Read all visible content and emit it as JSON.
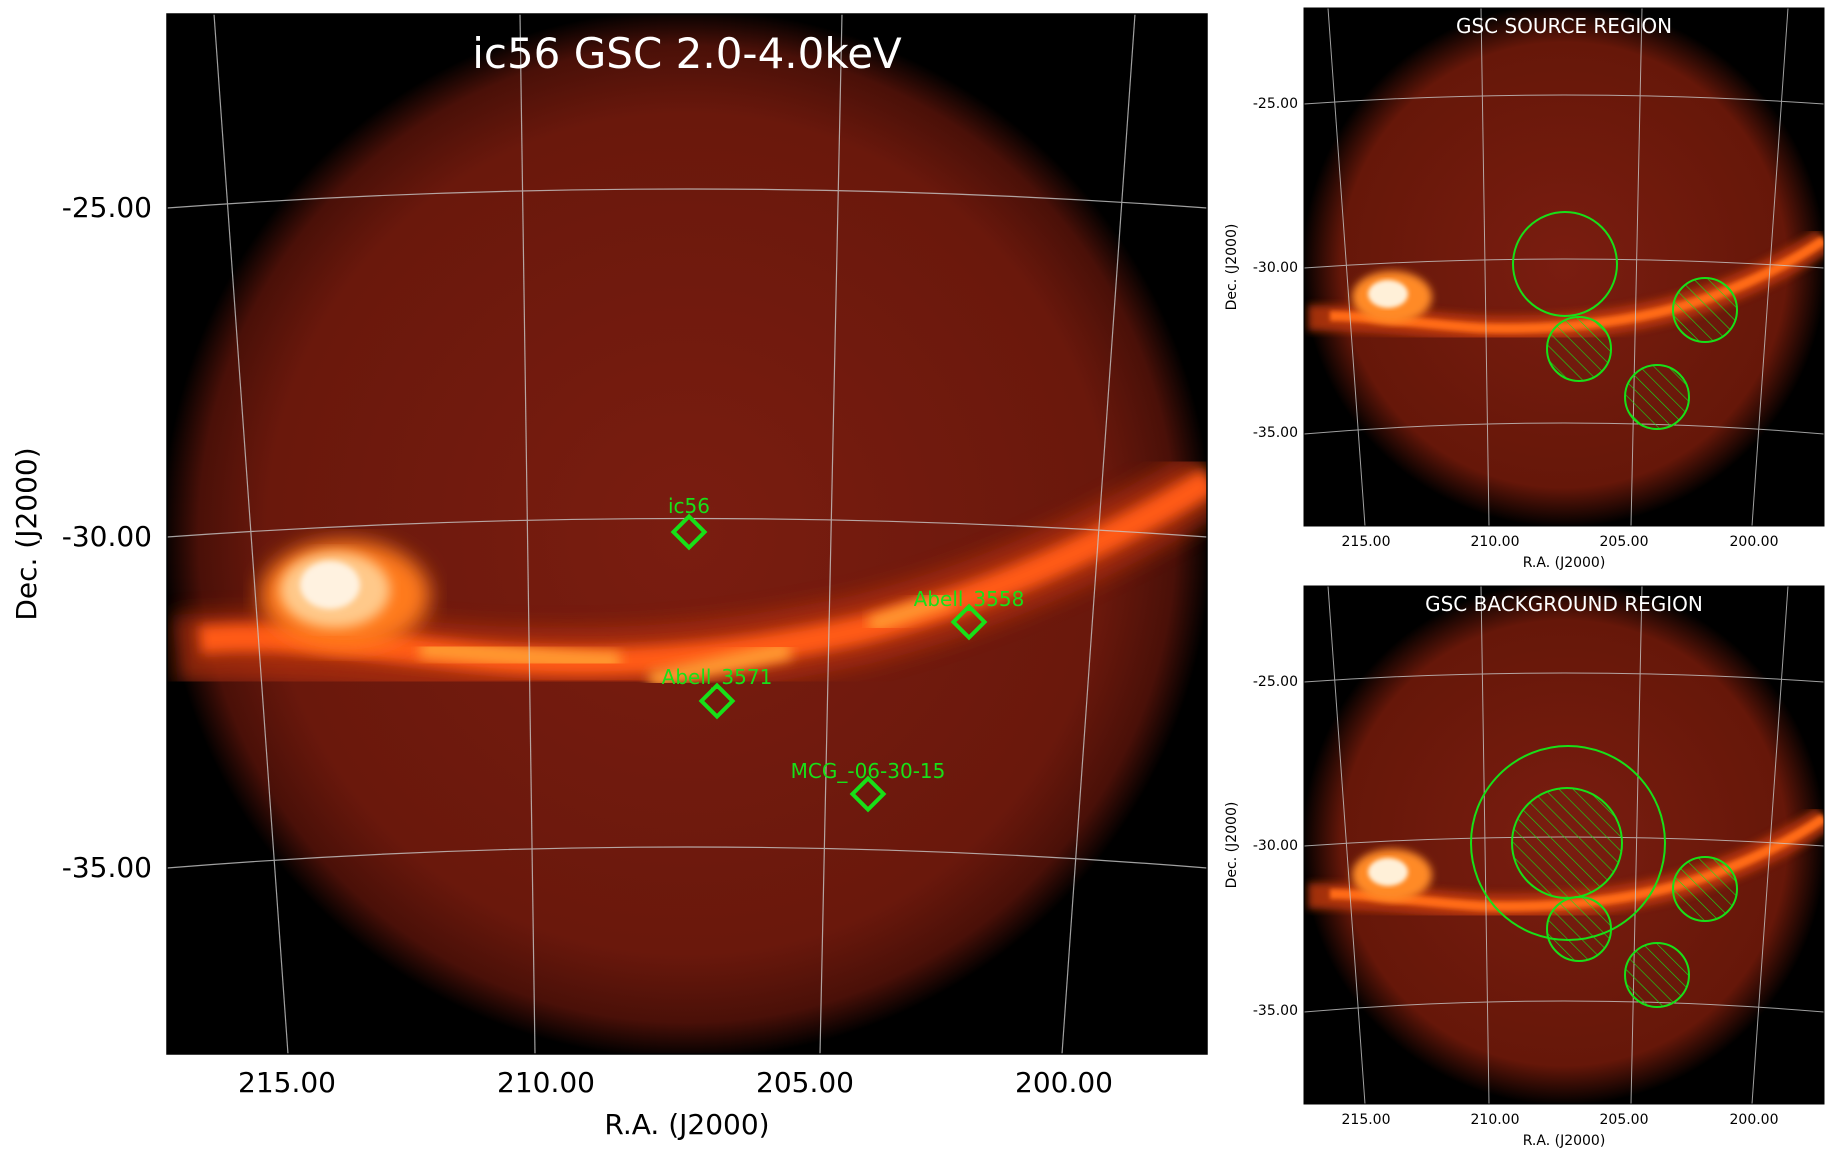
{
  "main": {
    "title": "ic56 GSC 2.0-4.0keV",
    "xlabel": "R.A. (J2000)",
    "ylabel": "Dec. (J2000)",
    "xticks": [
      "215.00",
      "210.00",
      "205.00",
      "200.00"
    ],
    "yticks": [
      "-25.00",
      "-30.00",
      "-35.00"
    ],
    "sources": [
      {
        "label": "ic56"
      },
      {
        "label": "Abell_3558"
      },
      {
        "label": "Abell_3571"
      },
      {
        "label": "MCG_-06-30-15"
      }
    ]
  },
  "source_panel": {
    "title": "GSC SOURCE REGION",
    "xlabel": "R.A. (J2000)",
    "ylabel": "Dec. (J2000)",
    "xticks": [
      "215.00",
      "210.00",
      "205.00",
      "200.00"
    ],
    "yticks": [
      "-25.00",
      "-30.00",
      "-35.00"
    ]
  },
  "background_panel": {
    "title": "GSC BACKGROUND REGION",
    "xlabel": "R.A. (J2000)",
    "ylabel": "Dec. (J2000)",
    "xticks": [
      "215.00",
      "210.00",
      "205.00",
      "200.00"
    ],
    "yticks": [
      "-25.00",
      "-30.00",
      "-35.00"
    ]
  },
  "colors": {
    "background": "#000000",
    "disk": "#6e1a0e",
    "ridge": "#ff7a1a",
    "hot": "#fff0d8",
    "region": "#18e018",
    "grid": "#c8c8c8"
  }
}
